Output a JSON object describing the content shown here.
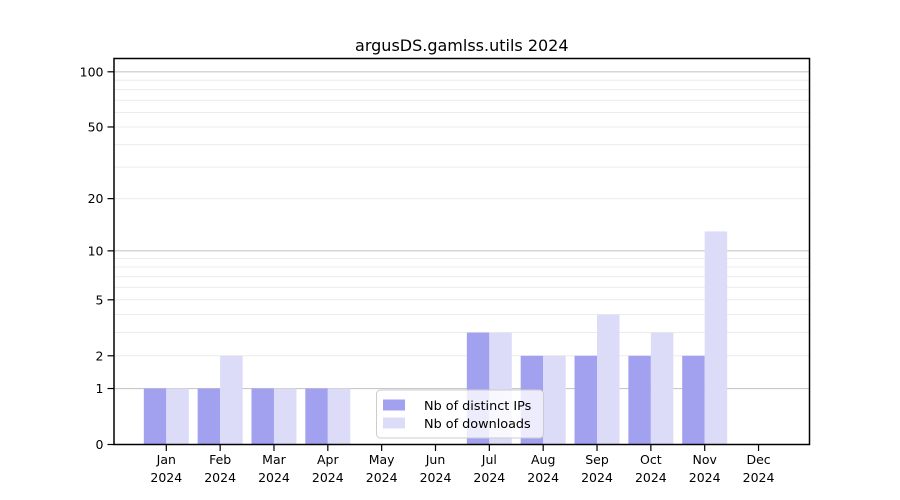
{
  "chart_data": {
    "type": "bar",
    "title": "argusDS.gamlss.utils 2024",
    "categories": [
      "Jan",
      "Feb",
      "Mar",
      "Apr",
      "May",
      "Jun",
      "Jul",
      "Aug",
      "Sep",
      "Oct",
      "Nov",
      "Dec"
    ],
    "category_sublabel": "2024",
    "series": [
      {
        "name": "Nb of distinct IPs",
        "color": "#a1a1f0",
        "values": [
          1,
          1,
          1,
          1,
          0,
          0,
          3,
          2,
          2,
          2,
          2,
          0
        ]
      },
      {
        "name": "Nb of downloads",
        "color": "#dcdcf8",
        "values": [
          1,
          2,
          1,
          1,
          0,
          0,
          3,
          2,
          4,
          3,
          13,
          0
        ]
      }
    ],
    "yscale": "log1p",
    "ylabel": "",
    "xlabel": "",
    "yticks": [
      0,
      1,
      2,
      5,
      10,
      20,
      50,
      100
    ],
    "major_gridlines": [
      1,
      10,
      100
    ],
    "minor_gridlines": [
      2,
      3,
      4,
      5,
      6,
      7,
      8,
      9,
      20,
      30,
      40,
      50,
      60,
      70,
      80,
      90
    ],
    "ylim": [
      0,
      120
    ],
    "grid": true,
    "legend": {
      "position": "inside-bottom-center",
      "entries": [
        "Nb of distinct IPs",
        "Nb of downloads"
      ]
    },
    "colors": {
      "axis": "#000000",
      "major_grid": "#c8c8c8",
      "minor_grid": "#ececec",
      "background": "#ffffff"
    }
  }
}
